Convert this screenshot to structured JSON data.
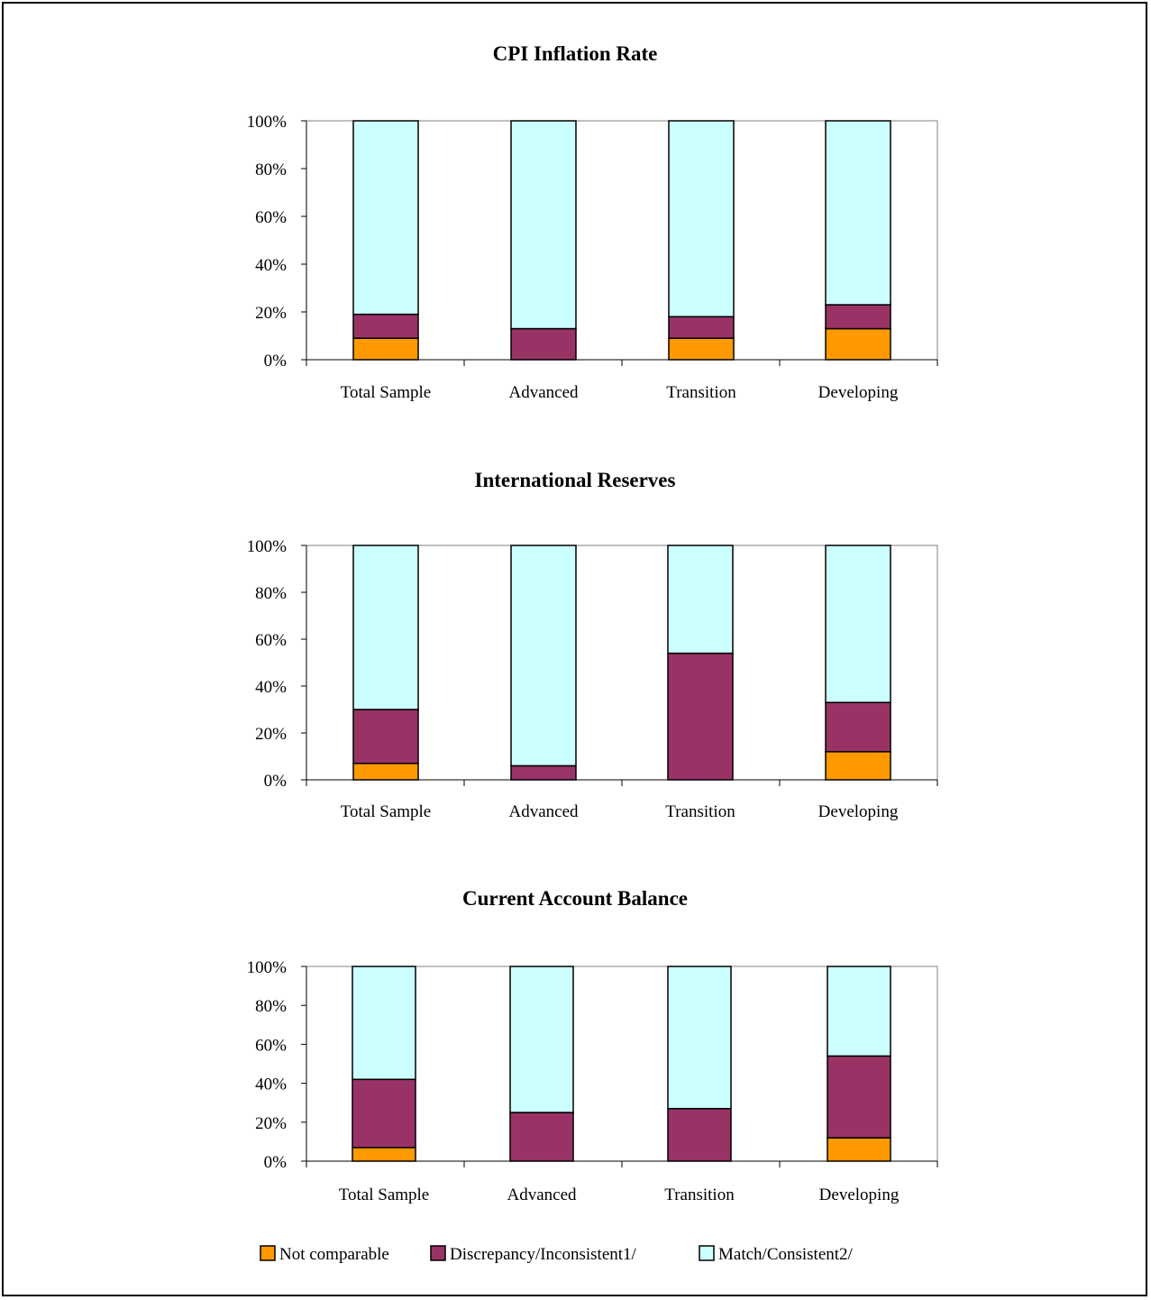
{
  "colors": {
    "not_comparable": "#FF9900",
    "discrepancy": "#993366",
    "match": "#CCFFFF"
  },
  "legend": [
    {
      "key": "not_comparable",
      "label": "Not comparable"
    },
    {
      "key": "discrepancy",
      "label": "Discrepancy/Inconsistent1/"
    },
    {
      "key": "match",
      "label": "Match/Consistent2/"
    }
  ],
  "chart_data": [
    {
      "type": "bar",
      "stacked": true,
      "title": "CPI Inflation Rate",
      "categories": [
        "Total Sample",
        "Advanced",
        "Transition",
        "Developing"
      ],
      "y_ticks": [
        "0%",
        "20%",
        "40%",
        "60%",
        "80%",
        "100%"
      ],
      "ylim": [
        0,
        100
      ],
      "series": [
        {
          "key": "not_comparable",
          "name": "Not comparable",
          "values": [
            9,
            0,
            9,
            13
          ]
        },
        {
          "key": "discrepancy",
          "name": "Discrepancy/Inconsistent1/",
          "values": [
            10,
            13,
            9,
            10
          ]
        },
        {
          "key": "match",
          "name": "Match/Consistent2/",
          "values": [
            81,
            87,
            82,
            77
          ]
        }
      ]
    },
    {
      "type": "bar",
      "stacked": true,
      "title": "International Reserves",
      "categories": [
        "Total Sample",
        "Advanced",
        "Transition",
        "Developing"
      ],
      "y_ticks": [
        "0%",
        "20%",
        "40%",
        "60%",
        "80%",
        "100%"
      ],
      "ylim": [
        0,
        100
      ],
      "series": [
        {
          "key": "not_comparable",
          "name": "Not comparable",
          "values": [
            7,
            0,
            0,
            12
          ]
        },
        {
          "key": "discrepancy",
          "name": "Discrepancy/Inconsistent1/",
          "values": [
            23,
            6,
            54,
            21
          ]
        },
        {
          "key": "match",
          "name": "Match/Consistent2/",
          "values": [
            70,
            94,
            46,
            67
          ]
        }
      ]
    },
    {
      "type": "bar",
      "stacked": true,
      "title": "Current Account Balance",
      "categories": [
        "Total Sample",
        "Advanced",
        "Transition",
        "Developing"
      ],
      "y_ticks": [
        "0%",
        "20%",
        "40%",
        "60%",
        "80%",
        "100%"
      ],
      "ylim": [
        0,
        100
      ],
      "series": [
        {
          "key": "not_comparable",
          "name": "Not comparable",
          "values": [
            7,
            0,
            0,
            12
          ]
        },
        {
          "key": "discrepancy",
          "name": "Discrepancy/Inconsistent1/",
          "values": [
            35,
            25,
            27,
            42
          ]
        },
        {
          "key": "match",
          "name": "Match/Consistent2/",
          "values": [
            58,
            75,
            73,
            46
          ]
        }
      ]
    }
  ]
}
